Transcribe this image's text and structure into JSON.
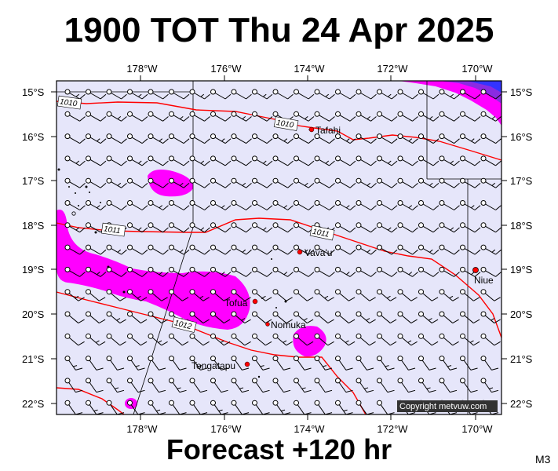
{
  "title": "1900 TOT Thu 24 Apr 2025",
  "footer": "Forecast +120 hr",
  "corner_label": "M3",
  "copyright": "Copyright metvuw.com",
  "lon_labels": [
    "178°W",
    "176°W",
    "174°W",
    "172°W",
    "170°W"
  ],
  "lat_labels": [
    "15°S",
    "16°S",
    "17°S",
    "18°S",
    "19°S",
    "20°S",
    "21°S",
    "22°S"
  ],
  "isobar_labels": [
    "1010",
    "1010",
    "1011",
    "1011",
    "1012"
  ],
  "places": [
    {
      "name": "Tafahi"
    },
    {
      "name": "Vava'u"
    },
    {
      "name": "Niue"
    },
    {
      "name": "Tofua"
    },
    {
      "name": "Nomuka"
    },
    {
      "name": "Tongatapu"
    }
  ],
  "colors": {
    "ocean": "#e6e6fa",
    "precip": "#ff00ff",
    "isobar": "#ff0000",
    "heavy_precip": "#6a1fe0"
  }
}
